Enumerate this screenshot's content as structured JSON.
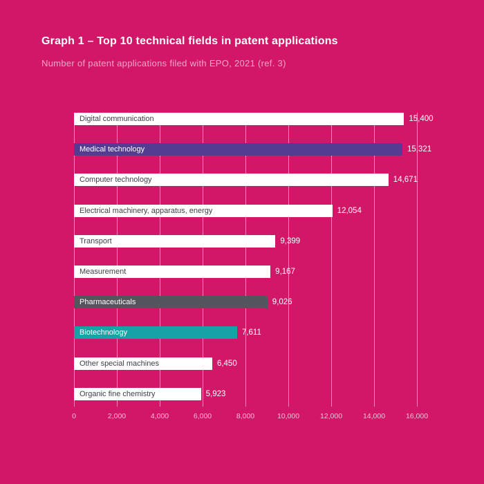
{
  "page": {
    "background_color": "#D31768"
  },
  "header": {
    "title": "Graph 1 – Top 10 technical fields in patent applications",
    "subtitle": "Number of patent applications filed with EPO, 2021 (ref. 3)"
  },
  "chart_data": {
    "type": "bar",
    "orientation": "horizontal",
    "title": "Graph 1 – Top 10 technical fields in patent applications",
    "subtitle": "Number of patent applications filed with EPO, 2021 (ref. 3)",
    "categories": [
      "Digital communication",
      "Medical technology",
      "Computer technology",
      "Electrical machinery, apparatus, energy",
      "Transport",
      "Measurement",
      "Pharmaceuticals",
      "Biotechnology",
      "Other special machines",
      "Organic fine chemistry"
    ],
    "values": [
      15400,
      15321,
      14671,
      12054,
      9399,
      9167,
      9026,
      7611,
      6450,
      5923
    ],
    "value_labels": [
      "15,400",
      "15,321",
      "14,671",
      "12,054",
      "9,399",
      "9,167",
      "9,026",
      "7,611",
      "6,450",
      "5,923"
    ],
    "bar_colors": [
      "#FFFFFF",
      "#533C91",
      "#FFFFFF",
      "#FFFFFF",
      "#FFFFFF",
      "#FFFFFF",
      "#55555D",
      "#16A3A6",
      "#FFFFFF",
      "#FFFFFF"
    ],
    "category_label_colors": [
      "#3E3E47",
      "#FFFFFF",
      "#3E3E47",
      "#3E3E47",
      "#3E3E47",
      "#3E3E47",
      "#FFFFFF",
      "#FFFFFF",
      "#3E3E47",
      "#3E3E47"
    ],
    "value_label_color": "#FFFFFF",
    "xlabel": "",
    "ylabel": "",
    "xlim": [
      0,
      16000
    ],
    "x_ticks": [
      {
        "value": 0,
        "label": "0"
      },
      {
        "value": 2000,
        "label": "2,000"
      },
      {
        "value": 4000,
        "label": "4,000"
      },
      {
        "value": 6000,
        "label": "6,000"
      },
      {
        "value": 8000,
        "label": "8,000"
      },
      {
        "value": 10000,
        "label": "10,000"
      },
      {
        "value": 12000,
        "label": "12,000"
      },
      {
        "value": 14000,
        "label": "14,000"
      },
      {
        "value": 16000,
        "label": "16,000"
      },
      {
        "value": 3000,
        "label": ""
      },
      {
        "value": 5000,
        "label": ""
      },
      {
        "value": 7000,
        "label": ""
      },
      {
        "value": 9000,
        "label": ""
      },
      {
        "value": 11000,
        "label": ""
      },
      {
        "value": 13000,
        "label": ""
      },
      {
        "value": 15000,
        "label": ""
      }
    ],
    "gridline_values": [
      0,
      2000,
      4000,
      6000,
      8000,
      10000,
      12000,
      14000,
      16000
    ],
    "grid": true,
    "legend": false
  }
}
